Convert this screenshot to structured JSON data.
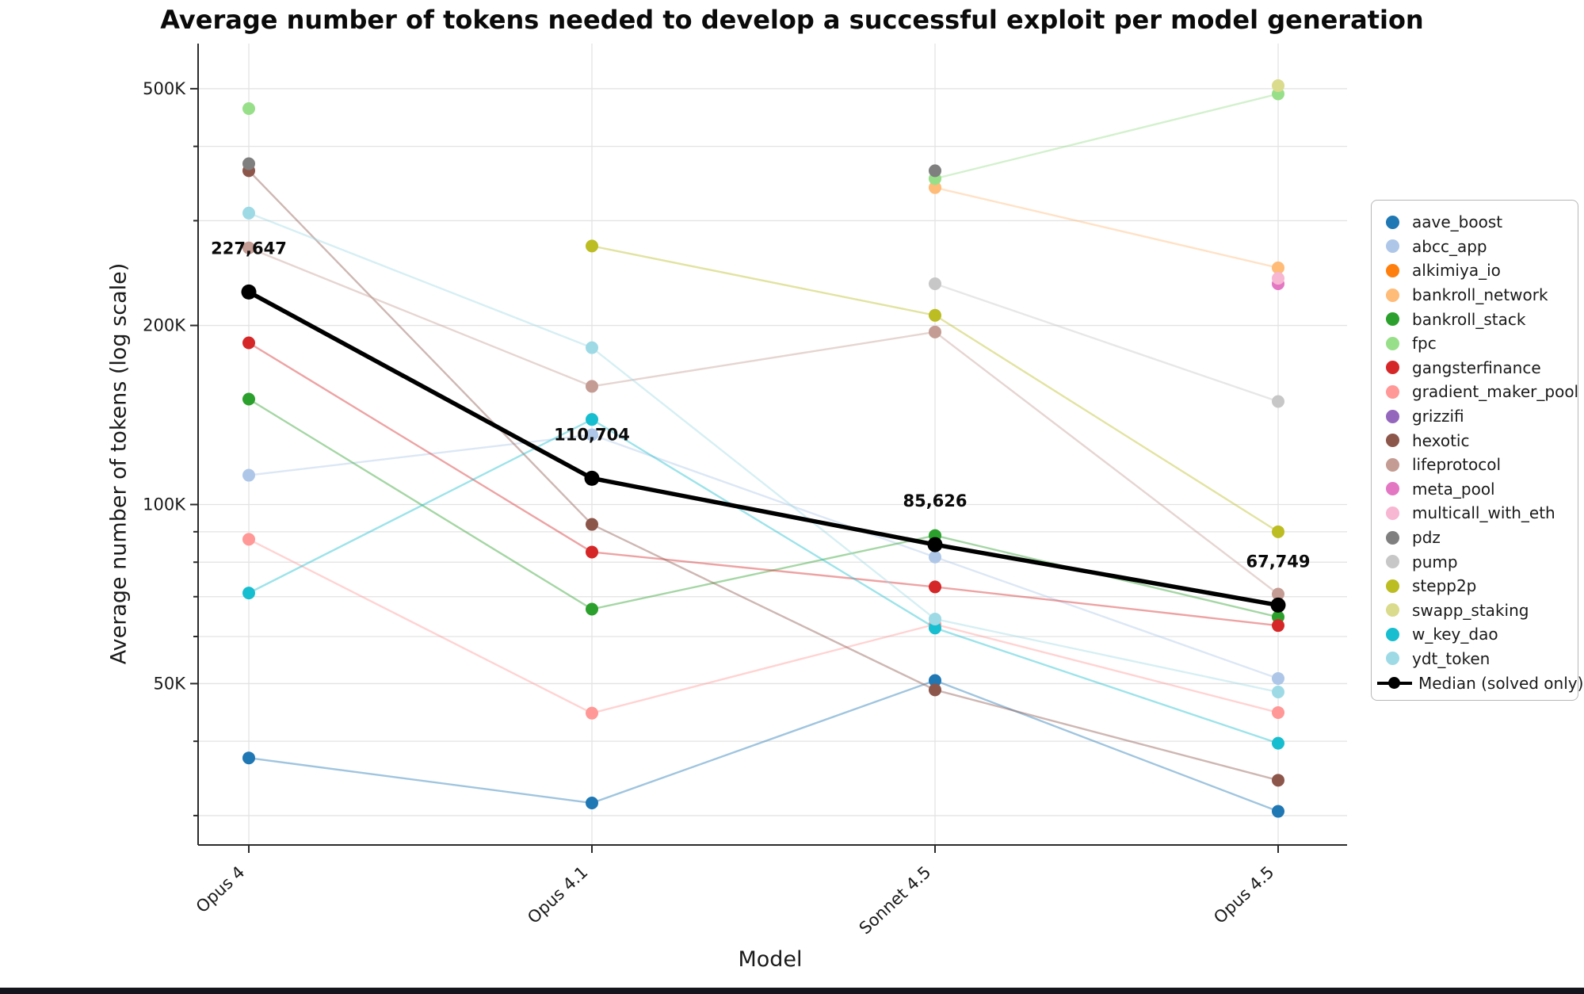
{
  "title": "Average number of tokens needed to develop a successful exploit per model generation",
  "chart_data": {
    "type": "line",
    "log_scale": true,
    "xlabel": "Model",
    "ylabel": "Average number of tokens (log scale)",
    "x_categories": [
      "Opus 4",
      "Opus 4.1",
      "Sonnet 4.5",
      "Opus 4.5"
    ],
    "y_tick_labels": [
      {
        "value": 500000,
        "label": "500K"
      },
      {
        "value": 200000,
        "label": "200K"
      },
      {
        "value": 100000,
        "label": "100K"
      },
      {
        "value": 50000,
        "label": "50K"
      }
    ],
    "y_gridlines": [
      500000,
      400000,
      300000,
      200000,
      100000,
      90000,
      80000,
      70000,
      60000,
      50000,
      40000,
      30000
    ],
    "ylim": [
      26500,
      595000
    ],
    "legend_position": "right",
    "series": [
      {
        "name": "aave_boost",
        "color": "#1f77b4",
        "values": [
          37500,
          31500,
          50600,
          30500
        ]
      },
      {
        "name": "abcc_app",
        "color": "#aec7e8",
        "values": [
          112000,
          131000,
          81600,
          51000
        ]
      },
      {
        "name": "alkimiya_io",
        "color": "#ff7f0e",
        "values": [
          null,
          null,
          null,
          null
        ]
      },
      {
        "name": "bankroll_network",
        "color": "#ffbb78",
        "values": [
          null,
          null,
          341000,
          250000
        ]
      },
      {
        "name": "bankroll_stack",
        "color": "#2ca02c",
        "values": [
          150400,
          66700,
          88700,
          64700
        ]
      },
      {
        "name": "fpc",
        "color": "#98df8a",
        "values": [
          463000,
          null,
          353000,
          490000
        ]
      },
      {
        "name": "gangsterfinance",
        "color": "#d62728",
        "values": [
          187000,
          83200,
          72700,
          62600
        ]
      },
      {
        "name": "gradient_maker_pool",
        "color": "#ff9896",
        "values": [
          87400,
          44600,
          62900,
          44700
        ]
      },
      {
        "name": "grizzifi",
        "color": "#9467bd",
        "values": [
          null,
          null,
          null,
          null
        ]
      },
      {
        "name": "hexotic",
        "color": "#8c564b",
        "values": [
          364000,
          92600,
          48800,
          34400
        ]
      },
      {
        "name": "lifeprotocol",
        "color": "#c49c94",
        "values": [
          270000,
          158000,
          195000,
          70700
        ]
      },
      {
        "name": "meta_pool",
        "color": "#e377c2",
        "values": [
          null,
          null,
          null,
          235000
        ]
      },
      {
        "name": "multicall_with_eth",
        "color": "#f7b6d2",
        "values": [
          null,
          null,
          null,
          240000
        ]
      },
      {
        "name": "pdz",
        "color": "#7f7f7f",
        "values": [
          374000,
          null,
          364000,
          null
        ]
      },
      {
        "name": "pump",
        "color": "#c7c7c7",
        "values": [
          null,
          null,
          235000,
          149000
        ]
      },
      {
        "name": "stepp2p",
        "color": "#bcbd22",
        "values": [
          null,
          272000,
          208000,
          90000
        ]
      },
      {
        "name": "swapp_staking",
        "color": "#dbdb8d",
        "values": [
          null,
          null,
          null,
          506000
        ]
      },
      {
        "name": "w_key_dao",
        "color": "#17becf",
        "values": [
          71000,
          139000,
          62000,
          39700
        ]
      },
      {
        "name": "ydt_token",
        "color": "#9edae5",
        "values": [
          309000,
          183500,
          64200,
          48400
        ]
      }
    ],
    "median": {
      "name": "Median (solved only)",
      "color": "#000000",
      "values": [
        227647,
        110704,
        85626,
        67749
      ],
      "labels": [
        "227,647",
        "110,704",
        "85,626",
        "67,749"
      ]
    }
  }
}
